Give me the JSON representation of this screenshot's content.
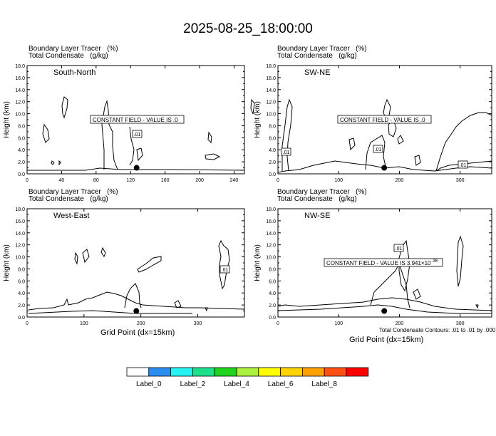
{
  "page": {
    "title": "2025-08-25_18:00:00"
  },
  "panels_text": {
    "tracer_label": "Boundary Layer Tracer",
    "tracer_unit": "(%)",
    "condensate_label": "Total Condensate",
    "condensate_unit": "(g/kg)"
  },
  "footer": {
    "contour_note": "Total Condensate Contours: .01 to .01 by .000",
    "xlabel": "Grid Point (dx=15km)"
  },
  "colorbar": {
    "colors": [
      "#ffffff",
      "#2d8cf0",
      "#26f2f2",
      "#1ee08c",
      "#1ed21e",
      "#aaf03c",
      "#ffff00",
      "#ffd200",
      "#ffa000",
      "#ff5014",
      "#ff0000"
    ],
    "labels": [
      "Label_0",
      "Label_2",
      "Label_4",
      "Label_6",
      "Label_8"
    ]
  },
  "chart_data": [
    {
      "type": "contour",
      "name": "South-North",
      "ylabel": "Height (km)",
      "xlim": [
        0,
        252
      ],
      "ylim": [
        0,
        18
      ],
      "xticks": [
        0,
        40,
        80,
        120,
        160,
        200,
        240
      ],
      "yticks": [
        "0.0",
        "2.0",
        "4.0",
        "6.0",
        "8.0",
        "10.0",
        "12.0",
        "14.0",
        "16.0",
        "18.0"
      ],
      "annotation": "CONSTANT FIELD - VALUE IS .0",
      "contour_labels": [
        ".01"
      ],
      "marker": {
        "x": 127,
        "y": 1.0
      }
    },
    {
      "type": "contour",
      "name": "SW-NE",
      "ylabel": "Height (km)",
      "xlim": [
        0,
        352
      ],
      "ylim": [
        0,
        18
      ],
      "xticks": [
        0,
        100,
        200,
        300
      ],
      "yticks": [
        "0.0",
        "2.0",
        "4.0",
        "6.0",
        "8.0",
        "10.0",
        "12.0",
        "14.0",
        "16.0",
        "18.0"
      ],
      "annotation": "CONSTANT FIELD - VALUE IS .0",
      "contour_labels": [
        ".01",
        ".01",
        ".01"
      ],
      "marker": {
        "x": 175,
        "y": 1.0
      }
    },
    {
      "type": "contour",
      "name": "West-East",
      "ylabel": "Height (km)",
      "xlim": [
        0,
        382
      ],
      "ylim": [
        0,
        18
      ],
      "xticks": [
        0,
        100,
        200,
        300
      ],
      "yticks": [
        "0.0",
        "2.0",
        "4.0",
        "6.0",
        "8.0",
        "10.0",
        "12.0",
        "14.0",
        "16.0",
        "18.0"
      ],
      "annotation": "",
      "contour_labels": [
        ".01"
      ],
      "marker": {
        "x": 192,
        "y": 1.0
      }
    },
    {
      "type": "contour",
      "name": "NW-SE",
      "ylabel": "Height (km)",
      "xlim": [
        0,
        352
      ],
      "ylim": [
        0,
        18
      ],
      "xticks": [
        0,
        100,
        200,
        300
      ],
      "yticks": [
        "0.0",
        "2.0",
        "4.0",
        "6.0",
        "8.0",
        "10.0",
        "12.0",
        "14.0",
        "16.0",
        "18.0"
      ],
      "annotation": "CONSTANT FIELD - VALUE IS 3.941×10",
      "annotation_exp": "-36",
      "contour_labels": [
        ".01"
      ],
      "marker": {
        "x": 175,
        "y": 1.0
      }
    }
  ]
}
